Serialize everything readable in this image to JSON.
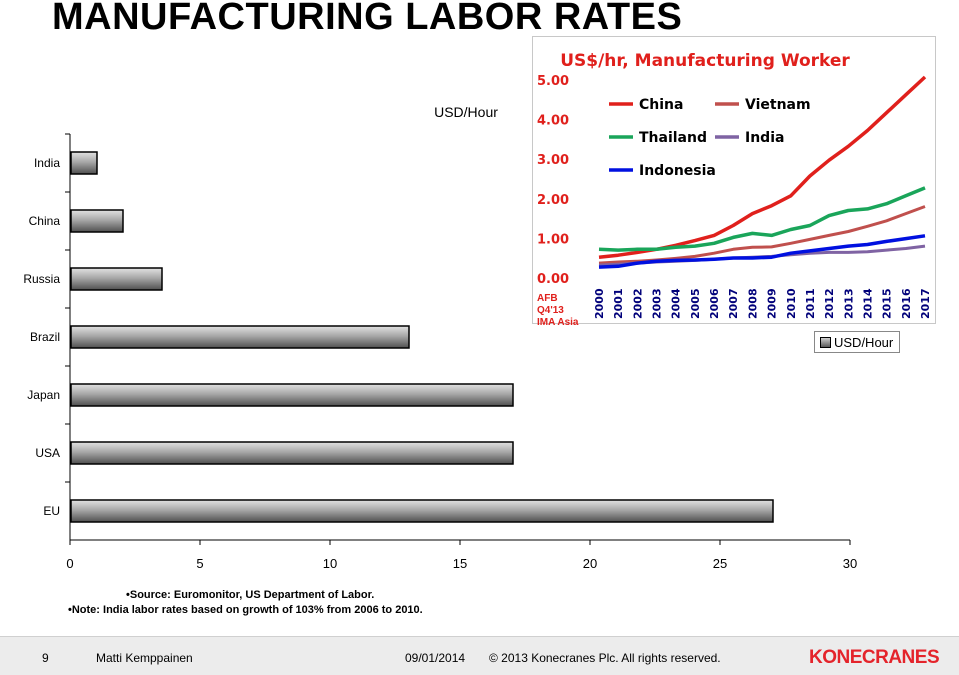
{
  "title": "MANUFACTURING LABOR RATES",
  "chart_data": [
    {
      "type": "bar",
      "orientation": "horizontal",
      "title": "USD/Hour",
      "categories": [
        "India",
        "China",
        "Russia",
        "Brazil",
        "Japan",
        "USA",
        "EU"
      ],
      "values": [
        1,
        2,
        3.5,
        13,
        17,
        17,
        27
      ],
      "xlim": [
        0,
        30
      ],
      "xticks": [
        0,
        5,
        10,
        15,
        20,
        25,
        30
      ],
      "legend": {
        "label": "USD/Hour",
        "position": "right"
      },
      "grid": false
    },
    {
      "type": "line",
      "title": "US$/hr, Manufacturing Worker",
      "x": [
        "2000",
        "2001",
        "2002",
        "2003",
        "2004",
        "2005",
        "2006",
        "2007",
        "2008",
        "2009",
        "2010",
        "2011",
        "2012",
        "2013",
        "2014",
        "2015",
        "2016",
        "2017"
      ],
      "ylim": [
        0,
        5
      ],
      "yticks": [
        "0.00",
        "1.00",
        "2.00",
        "3.00",
        "4.00",
        "5.00"
      ],
      "series": [
        {
          "name": "China",
          "color": "#e0201c",
          "values": [
            0.5,
            0.55,
            0.62,
            0.7,
            0.8,
            0.92,
            1.05,
            1.3,
            1.6,
            1.8,
            2.05,
            2.55,
            2.95,
            3.3,
            3.7,
            4.15,
            4.6,
            5.05
          ]
        },
        {
          "name": "Vietnam",
          "color": "#c0504d",
          "values": [
            0.35,
            0.38,
            0.4,
            0.43,
            0.47,
            0.52,
            0.6,
            0.7,
            0.75,
            0.76,
            0.85,
            0.95,
            1.05,
            1.15,
            1.28,
            1.42,
            1.6,
            1.78
          ]
        },
        {
          "name": "Thailand",
          "color": "#1aa55a",
          "values": [
            0.7,
            0.68,
            0.7,
            0.7,
            0.75,
            0.78,
            0.85,
            1.0,
            1.1,
            1.05,
            1.2,
            1.3,
            1.55,
            1.68,
            1.72,
            1.85,
            2.05,
            2.25
          ]
        },
        {
          "name": "India",
          "color": "#7f63a3",
          "values": [
            0.3,
            0.32,
            0.35,
            0.38,
            0.4,
            0.42,
            0.45,
            0.48,
            0.5,
            0.52,
            0.56,
            0.6,
            0.62,
            0.62,
            0.64,
            0.68,
            0.72,
            0.78
          ]
        },
        {
          "name": "Indonesia",
          "color": "#0010e0",
          "values": [
            0.25,
            0.27,
            0.35,
            0.4,
            0.42,
            0.43,
            0.45,
            0.48,
            0.48,
            0.5,
            0.6,
            0.66,
            0.72,
            0.78,
            0.82,
            0.9,
            0.97,
            1.04
          ]
        }
      ],
      "legend_position": "top-left",
      "grid": false,
      "source_note": [
        "AFB",
        "Q4'13",
        "IMA Asia"
      ]
    }
  ],
  "notes": [
    "Source: Euromonitor, US Department of Labor.",
    "Note: India labor rates based on growth of 103% from 2006 to 2010."
  ],
  "footer": {
    "page": "9",
    "author": "Matti Kemppainen",
    "date": "09/01/2014",
    "copyright": "© 2013 Konecranes Plc. All rights reserved.",
    "logo": "KONECRANES"
  }
}
